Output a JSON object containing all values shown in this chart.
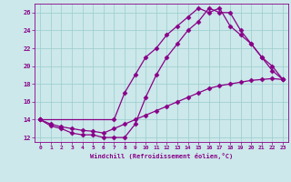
{
  "xlabel": "Windchill (Refroidissement éolien,°C)",
  "bg_color": "#cce8ea",
  "line_color": "#880088",
  "xlim": [
    -0.5,
    23.5
  ],
  "ylim": [
    11.5,
    27
  ],
  "xticks": [
    0,
    1,
    2,
    3,
    4,
    5,
    6,
    7,
    8,
    9,
    10,
    11,
    12,
    13,
    14,
    15,
    16,
    17,
    18,
    19,
    20,
    21,
    22,
    23
  ],
  "yticks": [
    12,
    14,
    16,
    18,
    20,
    22,
    24,
    26
  ],
  "grid_color": "#99cccc",
  "line1_x": [
    0,
    1,
    2,
    3,
    4,
    5,
    6,
    7,
    8,
    9,
    10,
    11,
    12,
    13,
    14,
    15,
    16,
    17,
    18,
    19,
    20,
    21,
    22,
    23
  ],
  "line1_y": [
    14.0,
    13.3,
    13.0,
    12.5,
    12.3,
    12.3,
    12.0,
    12.0,
    12.0,
    13.5,
    16.5,
    19.0,
    21.0,
    22.5,
    24.0,
    25.0,
    26.5,
    26.0,
    26.0,
    24.0,
    22.5,
    21.0,
    19.5,
    18.5
  ],
  "line2_x": [
    0,
    7,
    8,
    9,
    10,
    11,
    12,
    13,
    14,
    15,
    16,
    17,
    18,
    19,
    20,
    21,
    22,
    23
  ],
  "line2_y": [
    14.0,
    14.0,
    17.0,
    19.0,
    21.0,
    22.0,
    23.5,
    24.5,
    25.5,
    26.5,
    26.0,
    26.5,
    24.5,
    23.5,
    22.5,
    21.0,
    20.0,
    18.5
  ],
  "line3_x": [
    0,
    1,
    2,
    3,
    4,
    5,
    6,
    7,
    8,
    9,
    10,
    11,
    12,
    13,
    14,
    15,
    16,
    17,
    18,
    19,
    20,
    21,
    22,
    23
  ],
  "line3_y": [
    14.0,
    13.5,
    13.2,
    13.0,
    12.8,
    12.7,
    12.5,
    13.0,
    13.5,
    14.0,
    14.5,
    15.0,
    15.5,
    16.0,
    16.5,
    17.0,
    17.5,
    17.8,
    18.0,
    18.2,
    18.4,
    18.5,
    18.6,
    18.5
  ]
}
